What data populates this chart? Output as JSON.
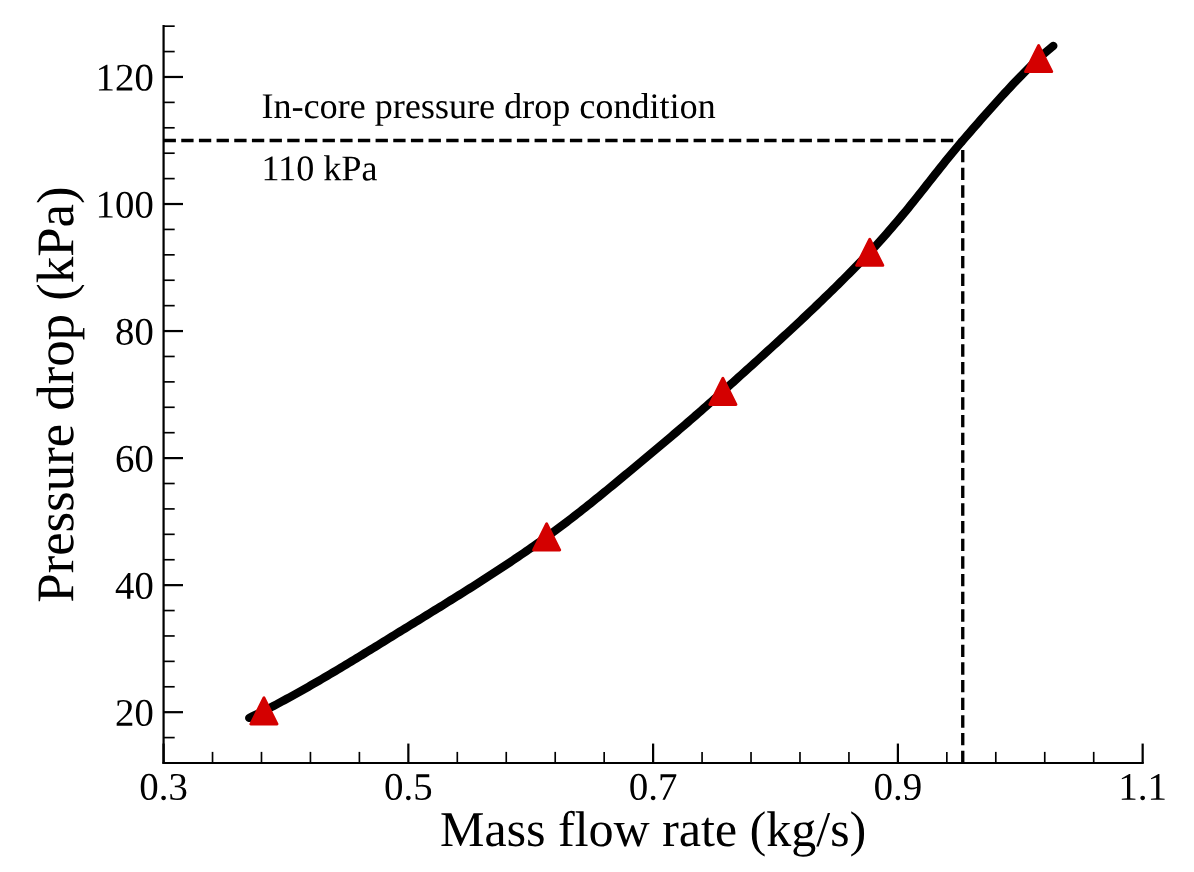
{
  "chart_data": {
    "type": "scatter",
    "xlabel": "Mass flow rate (kg/s)",
    "ylabel": "Pressure drop (kPa)",
    "xlim": [
      0.3,
      1.1
    ],
    "xticks": [
      0.3,
      0.5,
      0.7,
      0.9,
      1.1
    ],
    "ylim": [
      12,
      128
    ],
    "yticks": [
      20,
      40,
      60,
      80,
      100,
      120
    ],
    "series": [
      {
        "type": "line",
        "color": "#000000",
        "marker": "none",
        "line_style": "solid",
        "x": [
          0.37,
          0.382,
          0.5,
          0.613,
          0.7,
          0.757,
          0.877,
          0.9,
          0.953,
          1.015,
          1.027
        ],
        "values": [
          19.1,
          20.2,
          33.5,
          47.6,
          61,
          70.5,
          92.4,
          97.4,
          110,
          122.9,
          124.9
        ]
      },
      {
        "color": "#d40000",
        "marker": "triangle",
        "x": [
          0.382,
          0.613,
          0.757,
          0.877,
          1.015
        ],
        "values": [
          20.2,
          47.6,
          70.5,
          92.4,
          122.9
        ]
      }
    ],
    "ref_lines": [
      {
        "axis": "y",
        "value": 110,
        "label": "In-core pressure drop condition",
        "line_style": "dashed",
        "color": "#000000"
      },
      {
        "axis": "x",
        "value": 0.953,
        "line_style": "dashed",
        "color": "#000000"
      }
    ],
    "annotations": [
      "110 kPa"
    ],
    "grid": false,
    "legend": false
  }
}
